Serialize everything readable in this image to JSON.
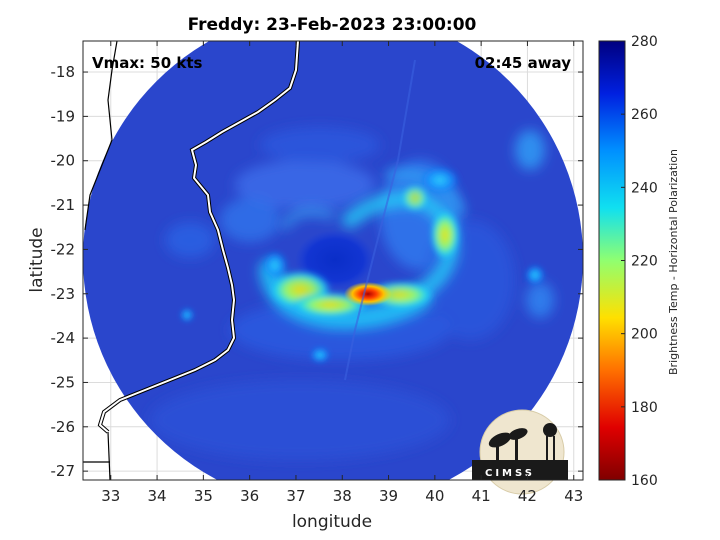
{
  "chart_data": {
    "type": "heatmap",
    "title": "Freddy: 23-Feb-2023 23:00:00",
    "xlabel": "longitude",
    "ylabel": "latitude",
    "xlim": [
      32.4,
      43.2
    ],
    "ylim": [
      -27.2,
      -17.3
    ],
    "xticks": [
      "33",
      "34",
      "35",
      "36",
      "37",
      "38",
      "39",
      "40",
      "41",
      "42",
      "43"
    ],
    "yticks": [
      "-18",
      "-19",
      "-20",
      "-21",
      "-22",
      "-23",
      "-24",
      "-25",
      "-26",
      "-27"
    ],
    "grid": true,
    "annotations": {
      "vmax": "Vmax: 50 kts",
      "time_away": "02:45 away"
    },
    "colorbar": {
      "label": "Brightness Temp - Horizontal Polarization",
      "min": 160,
      "max": 280,
      "ticks": [
        "160",
        "180",
        "200",
        "220",
        "240",
        "260",
        "280"
      ],
      "colormap": "jet"
    },
    "swath": {
      "center_lon": 37.8,
      "center_lat": -22.2,
      "radius_deg": 5.4
    },
    "features": [
      {
        "name": "minimum",
        "lon": 38.5,
        "lat": -23.0,
        "value": 175
      },
      {
        "name": "southern-rainband",
        "lon": 37.4,
        "lat": -23.3,
        "value": 215
      },
      {
        "name": "eastern-rainband",
        "lon": 40.2,
        "lat": -21.8,
        "value": 225
      },
      {
        "name": "eye",
        "lon": 37.6,
        "lat": -22.2,
        "value": 265
      }
    ],
    "logo": "CIMSS"
  },
  "colors": {
    "land": "#ffffff",
    "background": "#2a45c8",
    "coastline": "#ffffff"
  }
}
